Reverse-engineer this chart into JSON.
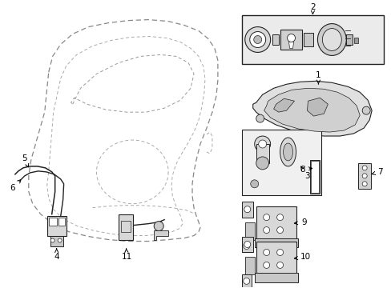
{
  "bg_color": "#ffffff",
  "line_color": "#222222",
  "dash_color": "#666666",
  "fill_light": "#e8e8e8",
  "fill_mid": "#cccccc",
  "fill_dark": "#aaaaaa"
}
